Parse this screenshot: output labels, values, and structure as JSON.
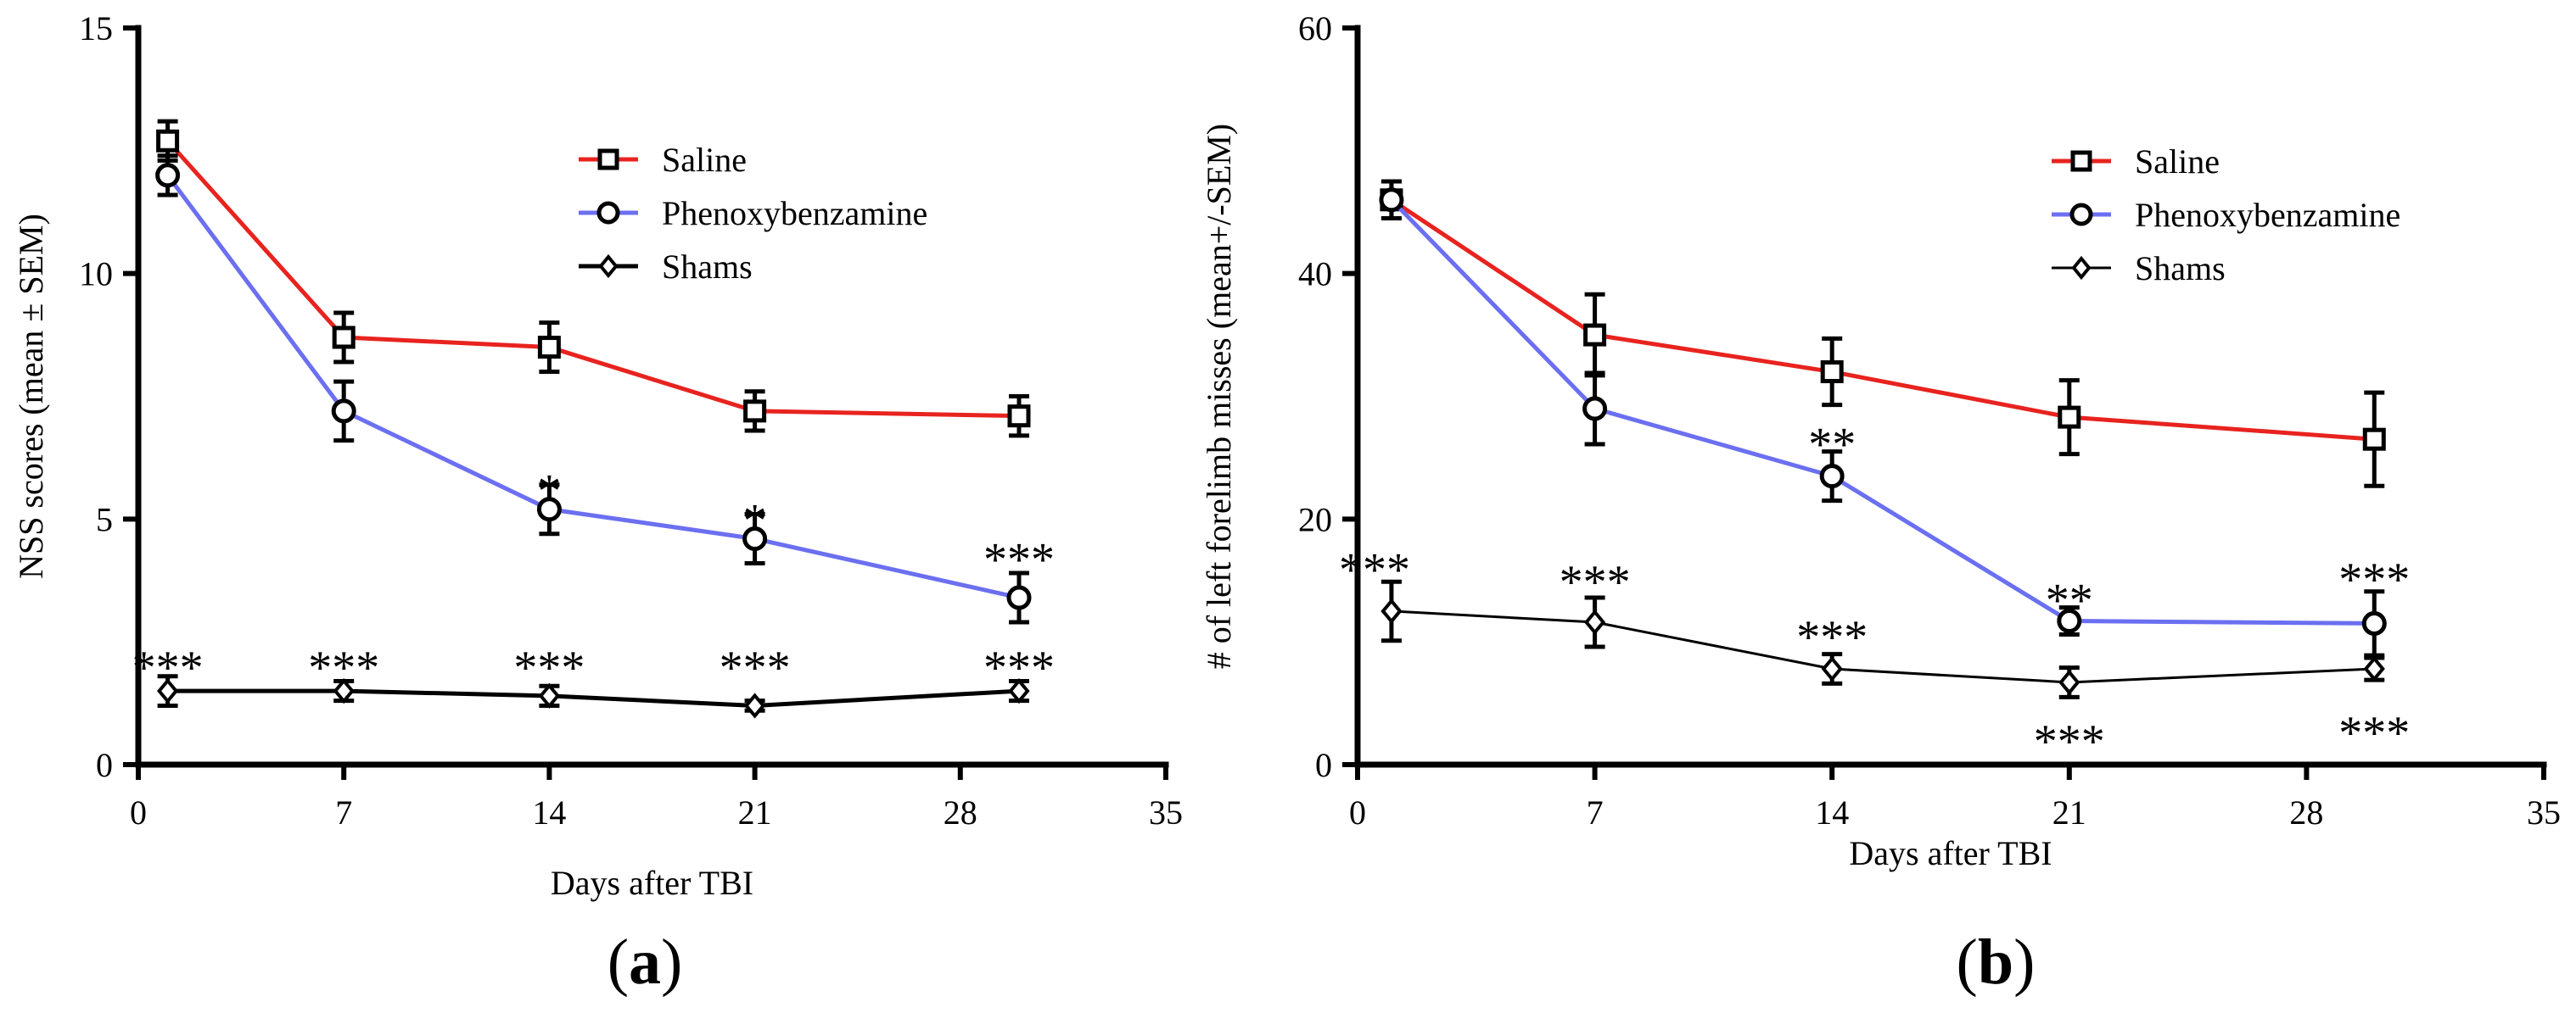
{
  "chart_data": [
    {
      "type": "line",
      "panel_label": "a",
      "title": "",
      "xlabel": "Days after TBI",
      "ylabel": "NSS scores (mean ± SEM)",
      "xlim": [
        0,
        35
      ],
      "ylim": [
        0,
        15
      ],
      "xticks": [
        0,
        7,
        14,
        21,
        28,
        35
      ],
      "yticks": [
        0,
        5,
        10,
        15
      ],
      "legend_position": "top-right",
      "series": [
        {
          "name": "Saline",
          "color": "#e8231f",
          "marker": "square",
          "line_width": "thick",
          "x": [
            1,
            7,
            14,
            21,
            30
          ],
          "y": [
            12.7,
            8.7,
            8.5,
            7.2,
            7.1
          ],
          "err": [
            0.4,
            0.5,
            0.5,
            0.4,
            0.4
          ]
        },
        {
          "name": "Phenoxybenzamine",
          "color": "#6b6ff0",
          "marker": "circle",
          "line_width": "thick",
          "x": [
            1,
            7,
            14,
            21,
            30
          ],
          "y": [
            12.0,
            7.2,
            5.2,
            4.6,
            3.4
          ],
          "err": [
            0.4,
            0.6,
            0.5,
            0.5,
            0.5
          ]
        },
        {
          "name": "Shams",
          "color": "#000000",
          "marker": "diamond",
          "line_width": "thick",
          "x": [
            1,
            7,
            14,
            21,
            30
          ],
          "y": [
            1.5,
            1.5,
            1.4,
            1.2,
            1.5
          ],
          "err": [
            0.3,
            0.2,
            0.2,
            0.1,
            0.2
          ]
        }
      ],
      "annotations": [
        {
          "text": "*",
          "x": 14,
          "y": 5.6
        },
        {
          "text": "*",
          "x": 21,
          "y": 5.0
        },
        {
          "text": "***",
          "x": 30,
          "y": 4.2
        },
        {
          "text": "***",
          "x": 1,
          "y": 2.0
        },
        {
          "text": "***",
          "x": 7,
          "y": 2.0
        },
        {
          "text": "***",
          "x": 14,
          "y": 2.0
        },
        {
          "text": "***",
          "x": 21,
          "y": 2.0
        },
        {
          "text": "***",
          "x": 30,
          "y": 2.0
        }
      ]
    },
    {
      "type": "line",
      "panel_label": "b",
      "title": "",
      "xlabel": "Days after TBI",
      "ylabel": "# of left forelimb misses (mean+/-SEM)",
      "xlim": [
        0,
        35
      ],
      "ylim": [
        0,
        60
      ],
      "xticks": [
        0,
        7,
        14,
        21,
        28,
        35
      ],
      "yticks": [
        0,
        20,
        40,
        60
      ],
      "legend_position": "top-right",
      "series": [
        {
          "name": "Saline",
          "color": "#e8231f",
          "marker": "square",
          "line_width": "thick",
          "x": [
            1,
            7,
            14,
            21,
            30
          ],
          "y": [
            46,
            35,
            32,
            28.3,
            26.5
          ],
          "err": [
            1.5,
            3.3,
            2.7,
            3.0,
            3.8
          ]
        },
        {
          "name": "Phenoxybenzamine",
          "color": "#6b6ff0",
          "marker": "circle",
          "line_width": "thick",
          "x": [
            1,
            7,
            14,
            21,
            30
          ],
          "y": [
            46,
            29,
            23.5,
            11.7,
            11.5
          ],
          "err": [
            1.5,
            2.9,
            2.0,
            1.1,
            2.6
          ]
        },
        {
          "name": "Shams",
          "color": "#000000",
          "marker": "diamond",
          "line_width": "thin",
          "x": [
            1,
            7,
            14,
            21,
            30
          ],
          "y": [
            12.5,
            11.6,
            7.8,
            6.7,
            7.8
          ],
          "err": [
            2.4,
            2.0,
            1.2,
            1.2,
            0.9
          ]
        }
      ],
      "annotations": [
        {
          "text": "***",
          "x": 0.5,
          "y": 16.0
        },
        {
          "text": "***",
          "x": 7,
          "y": 15.0
        },
        {
          "text": "**",
          "x": 14,
          "y": 26.2
        },
        {
          "text": "***",
          "x": 14,
          "y": 10.5
        },
        {
          "text": "**",
          "x": 21,
          "y": 13.5
        },
        {
          "text": "***",
          "x": 21,
          "y": 2.0
        },
        {
          "text": "***",
          "x": 30,
          "y": 15.2
        },
        {
          "text": "***",
          "x": 30,
          "y": 2.7
        }
      ]
    }
  ]
}
